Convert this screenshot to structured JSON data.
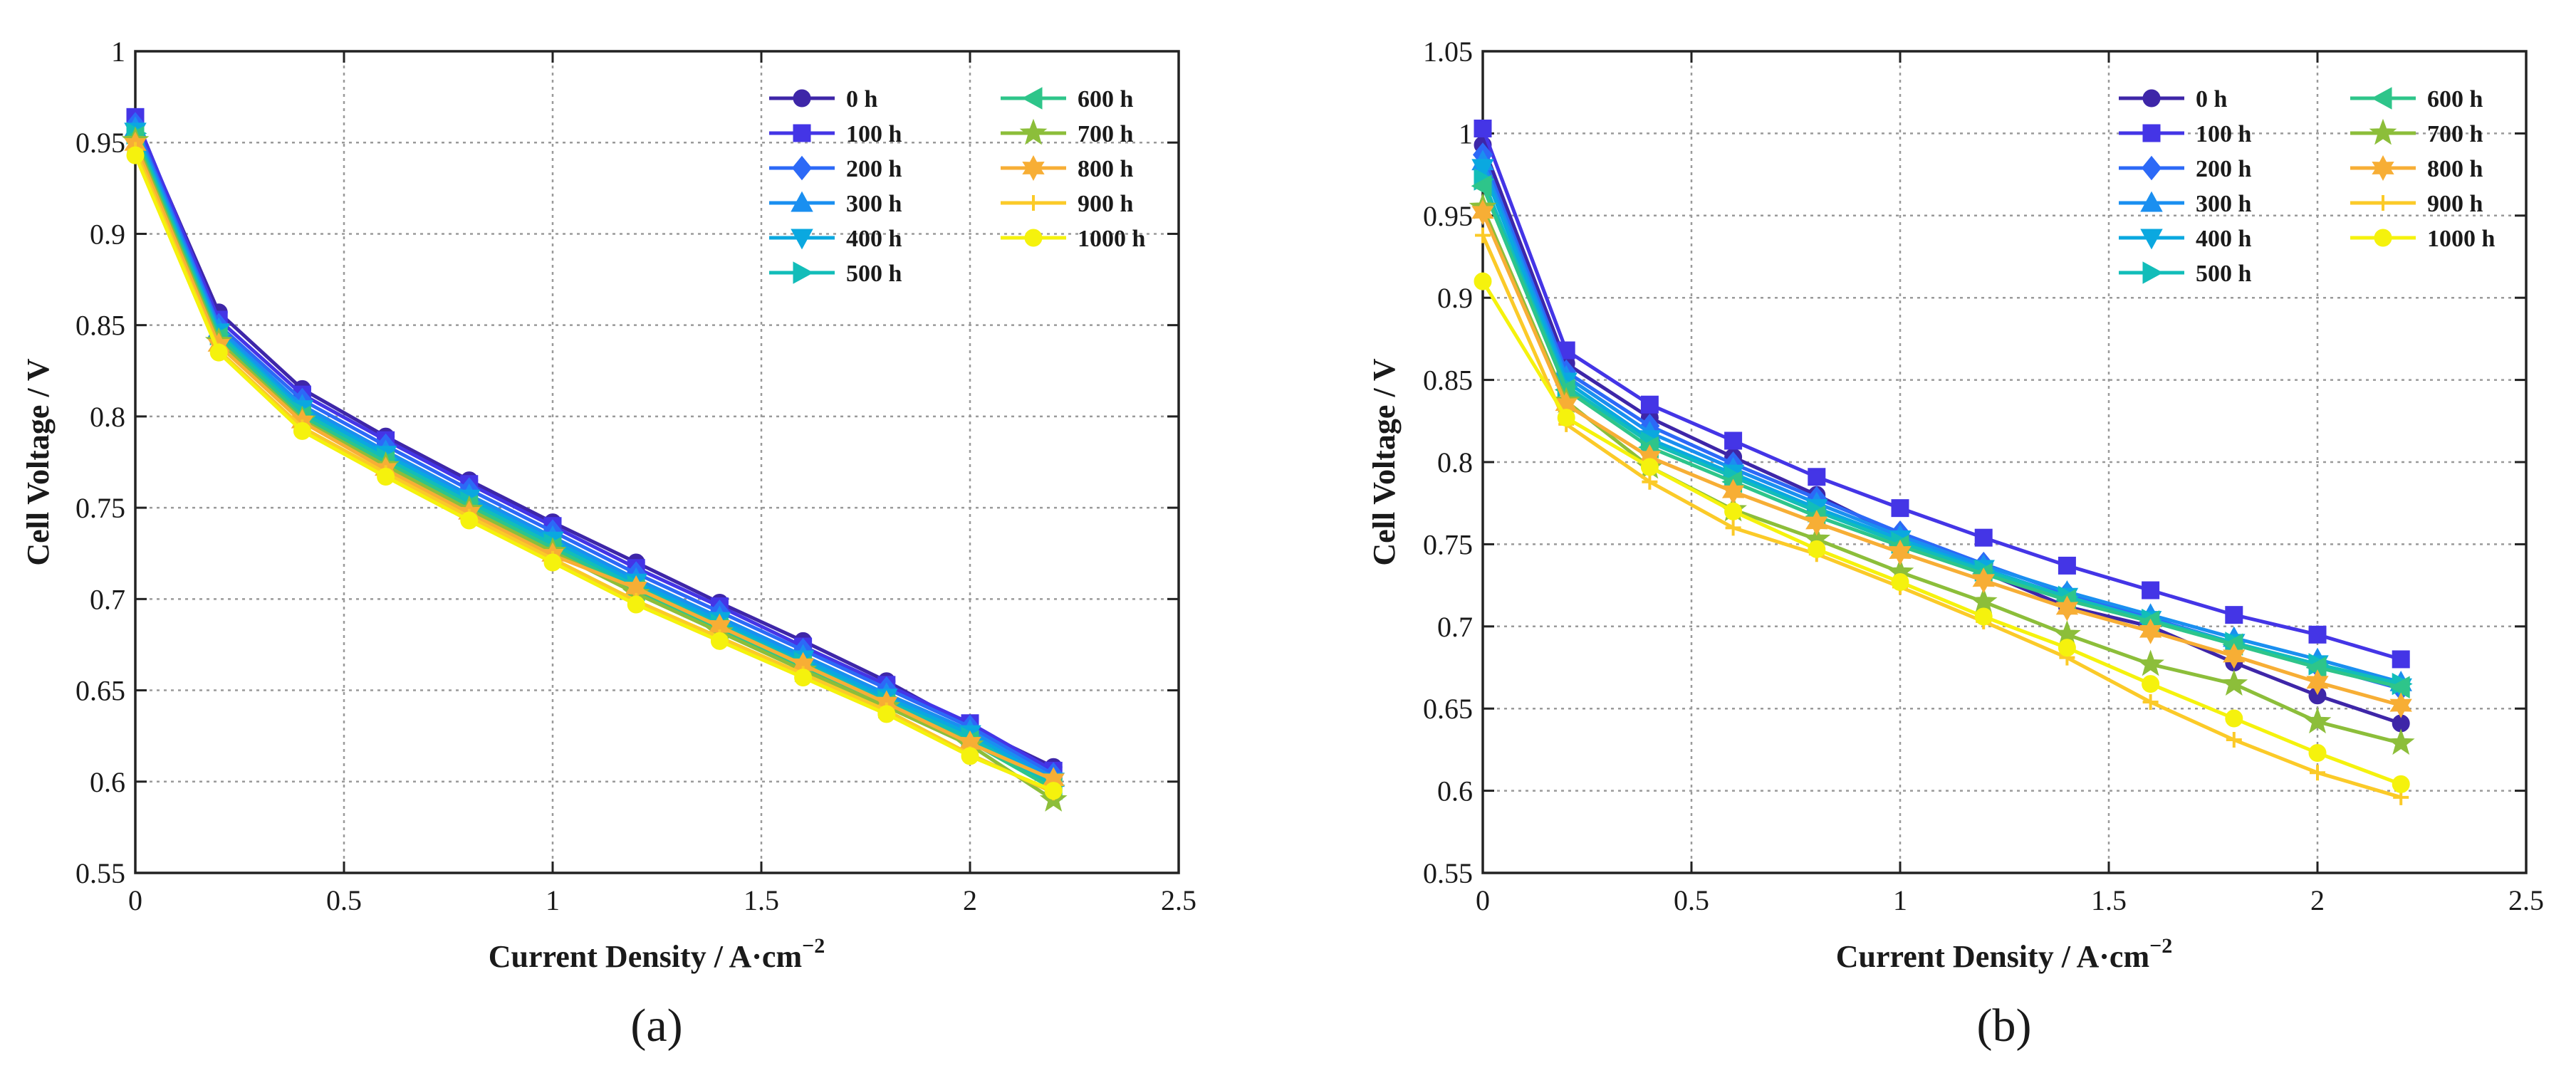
{
  "chart_data": [
    {
      "type": "line",
      "panel_label": "(a)",
      "xlabel": "Current Density / A·cm",
      "xlabel_sup": "−2",
      "ylabel": "Cell Voltage / V",
      "xlim": [
        0,
        2.5
      ],
      "ylim": [
        0.55,
        1.0
      ],
      "xticks": [
        0,
        0.5,
        1,
        1.5,
        2,
        2.5
      ],
      "xtick_labels": [
        "0",
        "0.5",
        "1",
        "1.5",
        "2",
        "2.5"
      ],
      "yticks": [
        0.55,
        0.6,
        0.65,
        0.7,
        0.75,
        0.8,
        0.85,
        0.9,
        0.95,
        1.0
      ],
      "ytick_labels": [
        "0.55",
        "0.6",
        "0.65",
        "0.7",
        "0.75",
        "0.8",
        "0.85",
        "0.9",
        "0.95",
        "1"
      ],
      "grid": true,
      "legend_position": "top-right",
      "x": [
        0,
        0.2,
        0.4,
        0.6,
        0.8,
        1.0,
        1.2,
        1.4,
        1.6,
        1.8,
        2.0,
        2.2
      ],
      "series": [
        {
          "name": "0 h",
          "color": "#3e26a8",
          "marker": "circle",
          "values": [
            0.962,
            0.857,
            0.815,
            0.789,
            0.765,
            0.742,
            0.72,
            0.698,
            0.677,
            0.655,
            0.63,
            0.608
          ]
        },
        {
          "name": "100 h",
          "color": "#4435e6",
          "marker": "square",
          "values": [
            0.964,
            0.853,
            0.812,
            0.787,
            0.763,
            0.74,
            0.717,
            0.696,
            0.674,
            0.653,
            0.632,
            0.606
          ]
        },
        {
          "name": "200 h",
          "color": "#2c69f7",
          "marker": "diamond",
          "values": [
            0.96,
            0.85,
            0.809,
            0.784,
            0.76,
            0.737,
            0.714,
            0.693,
            0.672,
            0.651,
            0.63,
            0.604
          ]
        },
        {
          "name": "300 h",
          "color": "#1a8ff0",
          "marker": "triangle-up",
          "values": [
            0.958,
            0.848,
            0.806,
            0.781,
            0.757,
            0.734,
            0.711,
            0.69,
            0.669,
            0.648,
            0.628,
            0.602
          ]
        },
        {
          "name": "400 h",
          "color": "#0aa8e0",
          "marker": "triangle-down",
          "values": [
            0.956,
            0.846,
            0.804,
            0.779,
            0.755,
            0.732,
            0.709,
            0.688,
            0.667,
            0.646,
            0.626,
            0.6
          ]
        },
        {
          "name": "500 h",
          "color": "#12bdb9",
          "marker": "triangle-right",
          "values": [
            0.955,
            0.845,
            0.802,
            0.777,
            0.753,
            0.73,
            0.707,
            0.686,
            0.665,
            0.644,
            0.624,
            0.598
          ]
        },
        {
          "name": "600 h",
          "color": "#2ec58a",
          "marker": "triangle-left",
          "values": [
            0.953,
            0.843,
            0.8,
            0.775,
            0.751,
            0.728,
            0.705,
            0.684,
            0.663,
            0.642,
            0.622,
            0.596
          ]
        },
        {
          "name": "700 h",
          "color": "#8cbe3a",
          "marker": "star",
          "values": [
            0.951,
            0.841,
            0.798,
            0.773,
            0.749,
            0.726,
            0.703,
            0.682,
            0.661,
            0.641,
            0.62,
            0.59
          ]
        },
        {
          "name": "800 h",
          "color": "#f7ae35",
          "marker": "hexagram",
          "values": [
            0.949,
            0.839,
            0.797,
            0.771,
            0.747,
            0.724,
            0.706,
            0.685,
            0.664,
            0.643,
            0.621,
            0.601
          ]
        },
        {
          "name": "900 h",
          "color": "#fbca28",
          "marker": "plus",
          "values": [
            0.946,
            0.836,
            0.794,
            0.769,
            0.745,
            0.722,
            0.699,
            0.679,
            0.659,
            0.639,
            0.615,
            0.594
          ]
        },
        {
          "name": "1000 h",
          "color": "#f5f20d",
          "marker": "circle",
          "values": [
            0.943,
            0.835,
            0.792,
            0.767,
            0.743,
            0.72,
            0.697,
            0.677,
            0.657,
            0.637,
            0.614,
            0.595
          ]
        }
      ]
    },
    {
      "type": "line",
      "panel_label": "(b)",
      "xlabel": "Current Density / A·cm",
      "xlabel_sup": "−2",
      "ylabel": "Cell Voltage / V",
      "xlim": [
        0,
        2.5
      ],
      "ylim": [
        0.55,
        1.05
      ],
      "xticks": [
        0,
        0.5,
        1,
        1.5,
        2,
        2.5
      ],
      "xtick_labels": [
        "0",
        "0.5",
        "1",
        "1.5",
        "2",
        "2.5"
      ],
      "yticks": [
        0.55,
        0.6,
        0.65,
        0.7,
        0.75,
        0.8,
        0.85,
        0.9,
        0.95,
        1.0,
        1.05
      ],
      "ytick_labels": [
        "0.55",
        "0.6",
        "0.65",
        "0.7",
        "0.75",
        "0.8",
        "0.85",
        "0.9",
        "0.95",
        "1",
        "1.05"
      ],
      "grid": true,
      "legend_position": "top-right",
      "x": [
        0,
        0.2,
        0.4,
        0.6,
        0.8,
        1.0,
        1.2,
        1.4,
        1.6,
        1.8,
        2.0,
        2.2
      ],
      "series": [
        {
          "name": "0 h",
          "color": "#3e26a8",
          "marker": "circle",
          "values": [
            0.993,
            0.86,
            0.827,
            0.803,
            0.78,
            0.755,
            0.733,
            0.712,
            0.7,
            0.678,
            0.658,
            0.641
          ]
        },
        {
          "name": "100 h",
          "color": "#4435e6",
          "marker": "square",
          "values": [
            1.003,
            0.868,
            0.835,
            0.813,
            0.791,
            0.772,
            0.754,
            0.737,
            0.722,
            0.707,
            0.695,
            0.68
          ]
        },
        {
          "name": "200 h",
          "color": "#2c69f7",
          "marker": "diamond",
          "values": [
            0.987,
            0.855,
            0.822,
            0.799,
            0.778,
            0.757,
            0.738,
            0.72,
            0.705,
            0.69,
            0.676,
            0.662
          ]
        },
        {
          "name": "300 h",
          "color": "#1a8ff0",
          "marker": "triangle-up",
          "values": [
            0.983,
            0.852,
            0.818,
            0.796,
            0.775,
            0.755,
            0.737,
            0.721,
            0.707,
            0.693,
            0.68,
            0.666
          ]
        },
        {
          "name": "400 h",
          "color": "#0aa8e0",
          "marker": "triangle-down",
          "values": [
            0.979,
            0.849,
            0.814,
            0.793,
            0.772,
            0.753,
            0.735,
            0.718,
            0.704,
            0.69,
            0.677,
            0.663
          ]
        },
        {
          "name": "500 h",
          "color": "#12bdb9",
          "marker": "triangle-right",
          "values": [
            0.972,
            0.846,
            0.812,
            0.791,
            0.77,
            0.751,
            0.734,
            0.718,
            0.704,
            0.69,
            0.677,
            0.665
          ]
        },
        {
          "name": "600 h",
          "color": "#2ec58a",
          "marker": "triangle-left",
          "values": [
            0.968,
            0.844,
            0.809,
            0.788,
            0.767,
            0.749,
            0.732,
            0.716,
            0.703,
            0.689,
            0.675,
            0.663
          ]
        },
        {
          "name": "700 h",
          "color": "#8cbe3a",
          "marker": "star",
          "values": [
            0.955,
            0.837,
            0.797,
            0.771,
            0.753,
            0.733,
            0.715,
            0.695,
            0.677,
            0.665,
            0.642,
            0.629
          ]
        },
        {
          "name": "800 h",
          "color": "#f7ae35",
          "marker": "hexagram",
          "values": [
            0.952,
            0.835,
            0.803,
            0.782,
            0.763,
            0.745,
            0.728,
            0.711,
            0.697,
            0.682,
            0.666,
            0.652
          ]
        },
        {
          "name": "900 h",
          "color": "#fbca28",
          "marker": "plus",
          "values": [
            0.938,
            0.823,
            0.788,
            0.76,
            0.744,
            0.724,
            0.703,
            0.681,
            0.654,
            0.631,
            0.611,
            0.596
          ]
        },
        {
          "name": "1000 h",
          "color": "#f5f20d",
          "marker": "circle",
          "values": [
            0.91,
            0.827,
            0.797,
            0.77,
            0.747,
            0.727,
            0.706,
            0.687,
            0.665,
            0.644,
            0.623,
            0.604
          ]
        }
      ]
    }
  ]
}
